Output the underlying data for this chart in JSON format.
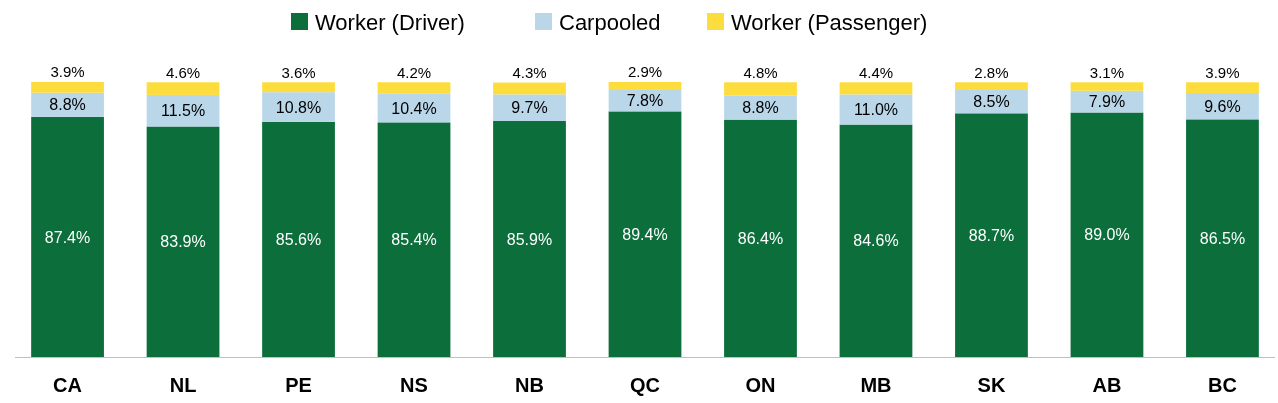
{
  "chart_data": {
    "type": "bar",
    "stacked": true,
    "legend": "top",
    "ylim": [
      0,
      100.1
    ],
    "categories": [
      "CA",
      "NL",
      "PE",
      "NS",
      "NB",
      "QC",
      "ON",
      "MB",
      "SK",
      "AB",
      "BC"
    ],
    "series": [
      {
        "name": "Worker (Driver)",
        "color": "#0b6e3b",
        "values": [
          87.4,
          83.9,
          85.6,
          85.4,
          85.9,
          89.4,
          86.4,
          84.6,
          88.7,
          89.0,
          86.5
        ],
        "value_labels": [
          "87.4%",
          "83.9%",
          "85.6%",
          "85.4%",
          "85.9%",
          "89.4%",
          "86.4%",
          "84.6%",
          "88.7%",
          "89.0%",
          "86.5%"
        ]
      },
      {
        "name": "Carpooled",
        "color": "#bad7e9",
        "values": [
          8.8,
          11.5,
          10.8,
          10.4,
          9.7,
          7.8,
          8.8,
          11.0,
          8.5,
          7.9,
          9.6
        ],
        "value_labels": [
          "8.8%",
          "11.5%",
          "10.8%",
          "10.4%",
          "9.7%",
          "7.8%",
          "8.8%",
          "11.0%",
          "8.5%",
          "7.9%",
          "9.6%"
        ]
      },
      {
        "name": "Worker (Passenger)",
        "color": "#fcdd3d",
        "values": [
          3.9,
          4.6,
          3.6,
          4.2,
          4.3,
          2.9,
          4.8,
          4.4,
          2.8,
          3.1,
          3.9
        ],
        "value_labels": [
          "3.9%",
          "4.6%",
          "3.6%",
          "4.2%",
          "4.3%",
          "2.9%",
          "4.8%",
          "4.4%",
          "2.8%",
          "3.1%",
          "3.9%"
        ]
      }
    ]
  }
}
